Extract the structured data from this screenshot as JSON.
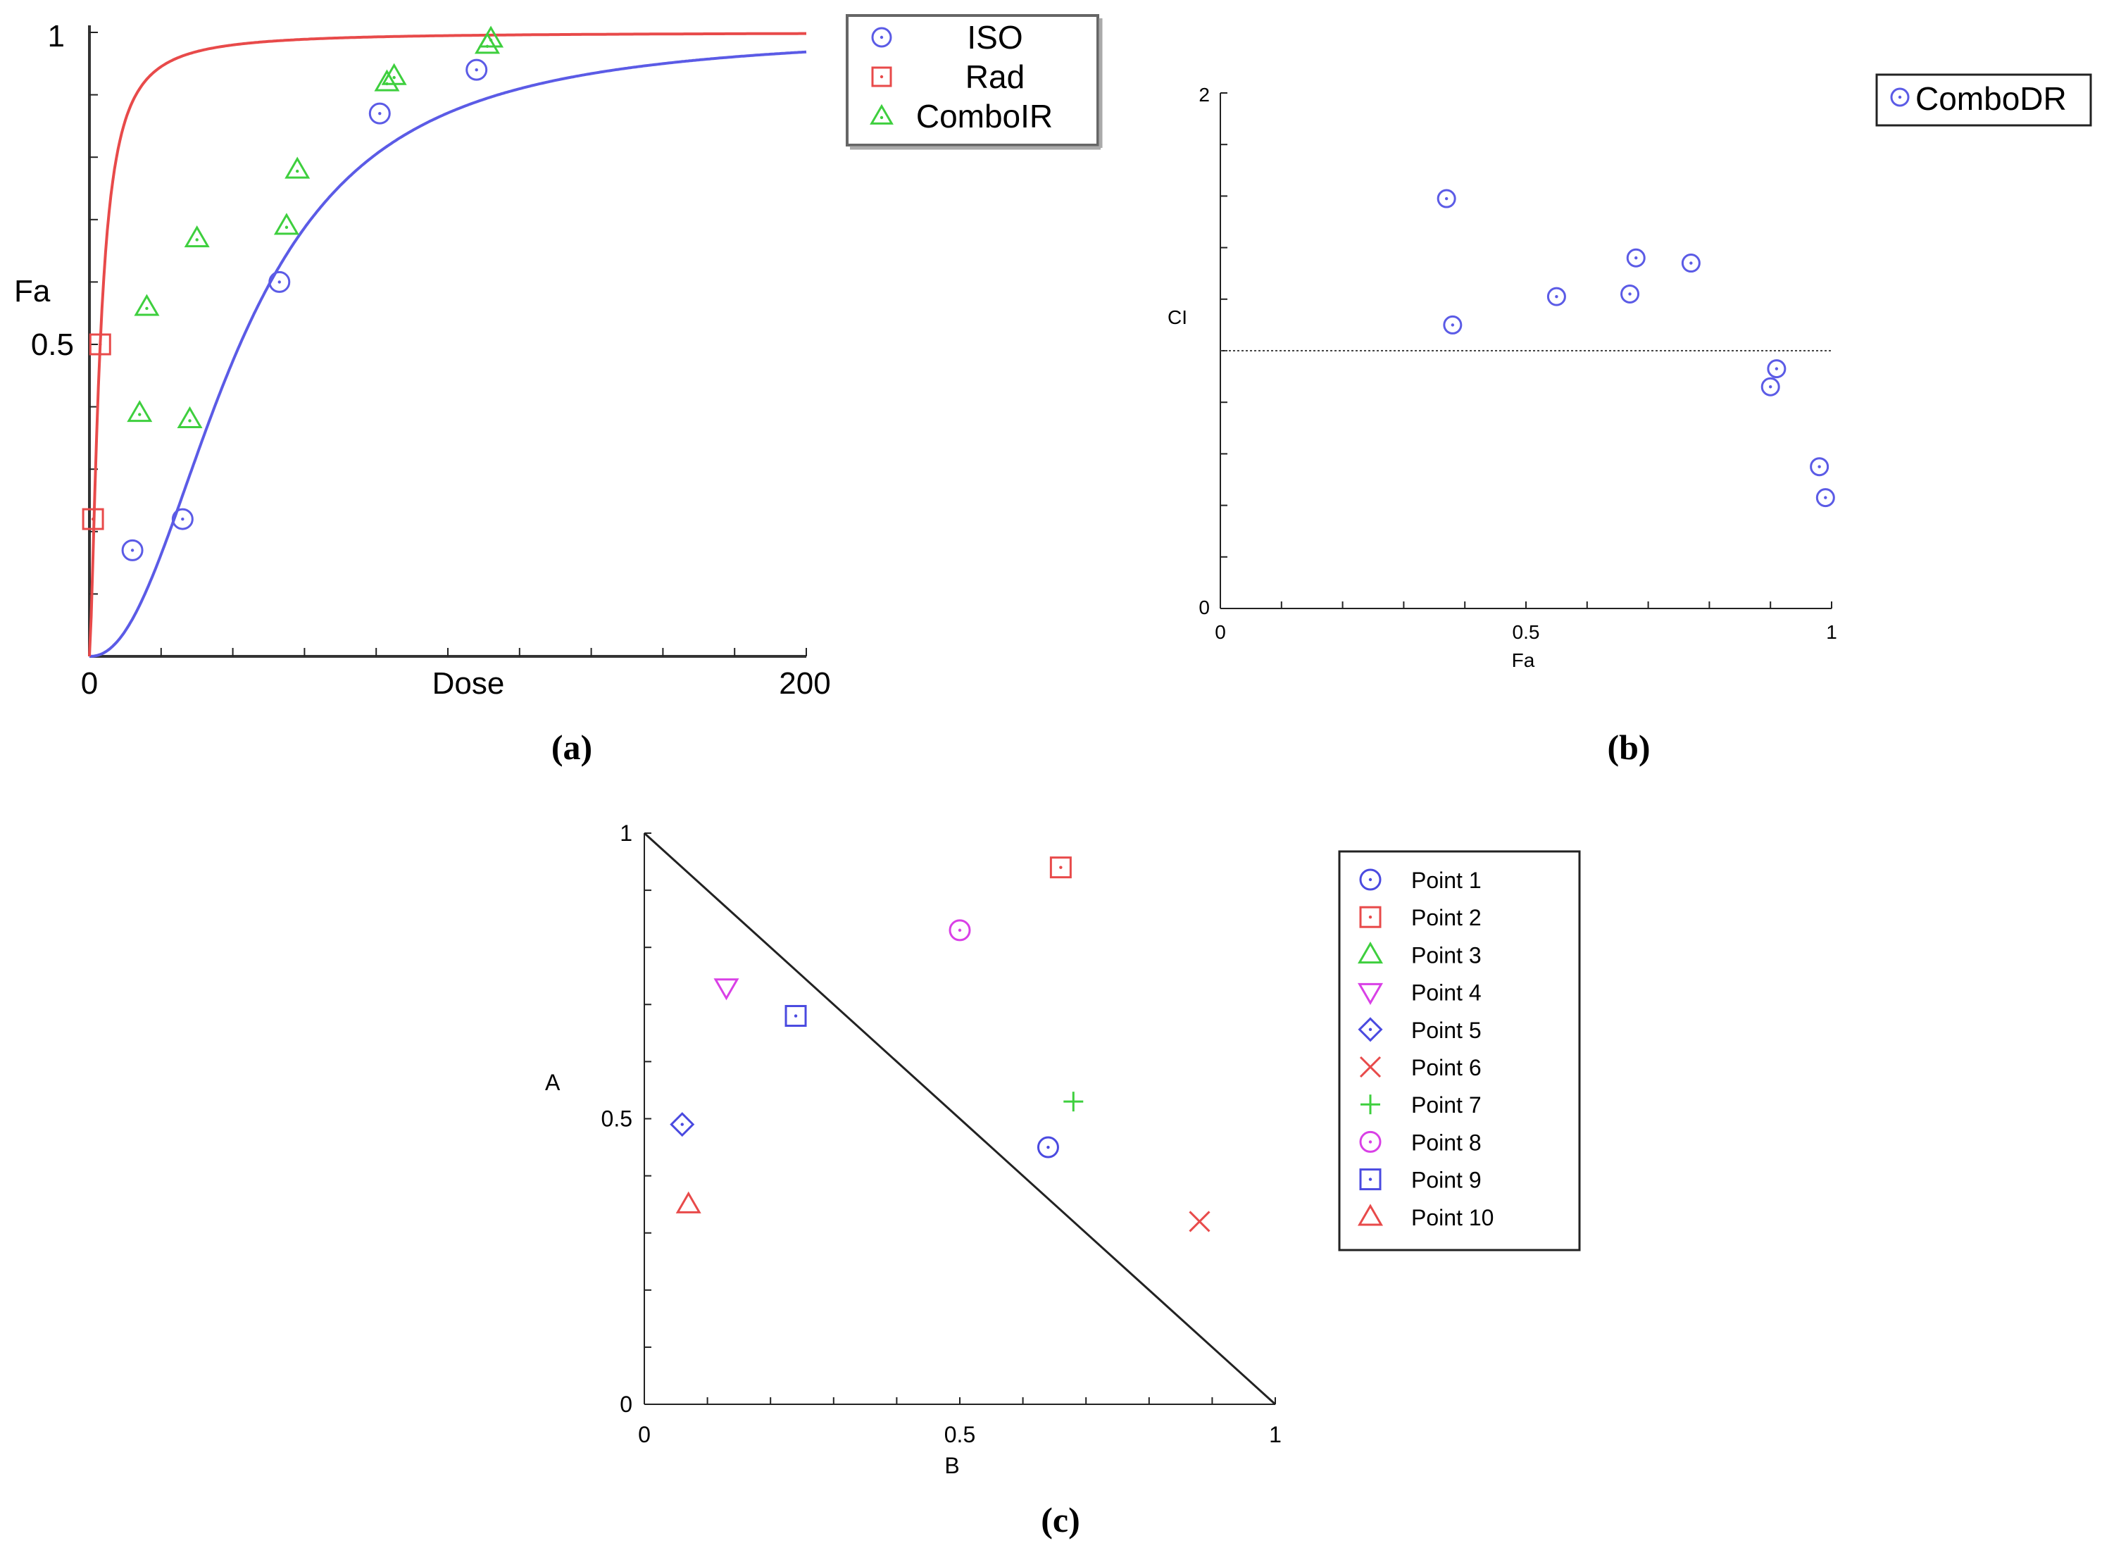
{
  "chart_data": [
    {
      "id": "a",
      "type": "scatter+line",
      "panel_label": "a",
      "xlabel": "Dose",
      "ylabel": "Fa",
      "xlim": [
        0,
        200
      ],
      "ylim": [
        0,
        1
      ],
      "x_ticks": [
        "0",
        "200"
      ],
      "y_ticks": [
        "0.5",
        "1"
      ],
      "legend": [
        "ISO",
        "Rad",
        "ComboIR"
      ],
      "colors": {
        "ISO": "#5b5be6",
        "Rad": "#e84a4a",
        "ComboIR": "#3ecf3e"
      },
      "series": [
        {
          "name": "ISO",
          "marker": "circle-dot",
          "points": [
            [
              12,
              0.17
            ],
            [
              26,
              0.22
            ],
            [
              53,
              0.6
            ],
            [
              81,
              0.87
            ],
            [
              108,
              0.94
            ]
          ]
        },
        {
          "name": "Rad",
          "marker": "square-dot",
          "points": [
            [
              1,
              0.22
            ],
            [
              3,
              0.5
            ]
          ]
        },
        {
          "name": "ComboIR",
          "marker": "triangle-dot",
          "points": [
            [
              14,
              0.39
            ],
            [
              16,
              0.56
            ],
            [
              28,
              0.38
            ],
            [
              30,
              0.67
            ],
            [
              55,
              0.69
            ],
            [
              58,
              0.78
            ],
            [
              83,
              0.92
            ],
            [
              85,
              0.93
            ],
            [
              111,
              0.98
            ],
            [
              112,
              0.99
            ]
          ]
        }
      ],
      "curves": [
        {
          "name": "ISO",
          "dm": 42,
          "m": 2.2
        },
        {
          "name": "Rad",
          "dm": 3,
          "m": 1.5
        }
      ]
    },
    {
      "id": "b",
      "type": "scatter",
      "panel_label": "b",
      "xlabel": "Fa",
      "ylabel": "CI",
      "xlim": [
        0,
        1
      ],
      "ylim": [
        0,
        2
      ],
      "x_ticks": [
        "0",
        "0.5",
        "1"
      ],
      "y_ticks": [
        "0",
        "2"
      ],
      "reference_line": 1,
      "legend": [
        "ComboDR"
      ],
      "colors": {
        "ComboDR": "#5b5be6"
      },
      "series": [
        {
          "name": "ComboDR",
          "marker": "circle-dot",
          "points": [
            [
              0.37,
              1.59
            ],
            [
              0.38,
              1.1
            ],
            [
              0.55,
              1.21
            ],
            [
              0.67,
              1.22
            ],
            [
              0.68,
              1.36
            ],
            [
              0.77,
              1.34
            ],
            [
              0.9,
              0.86
            ],
            [
              0.91,
              0.93
            ],
            [
              0.98,
              0.55
            ],
            [
              0.99,
              0.43
            ]
          ]
        }
      ]
    },
    {
      "id": "c",
      "type": "scatter",
      "panel_label": "c",
      "xlabel": "B",
      "ylabel": "A",
      "xlim": [
        0,
        1
      ],
      "ylim": [
        0,
        1
      ],
      "x_ticks": [
        "0",
        "0.5",
        "1"
      ],
      "y_ticks": [
        "0",
        "0.5",
        "1"
      ],
      "isobole": [
        [
          0,
          1
        ],
        [
          1,
          0
        ]
      ],
      "series": [
        {
          "name": "Point 1",
          "marker": "circle-dot",
          "color": "#4a4ae0",
          "points": [
            [
              0.64,
              0.45
            ]
          ]
        },
        {
          "name": "Point 2",
          "marker": "square-dot",
          "color": "#e84a4a",
          "points": [
            [
              0.66,
              0.94
            ]
          ]
        },
        {
          "name": "Point 3",
          "marker": "triangle",
          "color": "#3ecf3e",
          "points": []
        },
        {
          "name": "Point 4",
          "marker": "triangle-down",
          "color": "#d940e6",
          "points": [
            [
              0.13,
              0.73
            ]
          ]
        },
        {
          "name": "Point 5",
          "marker": "diamond-dot",
          "color": "#4a4ae0",
          "points": [
            [
              0.06,
              0.49
            ]
          ]
        },
        {
          "name": "Point 6",
          "marker": "cross-x",
          "color": "#e84a4a",
          "points": [
            [
              0.88,
              0.32
            ]
          ]
        },
        {
          "name": "Point 7",
          "marker": "plus",
          "color": "#3ecf3e",
          "points": [
            [
              0.68,
              0.53
            ]
          ]
        },
        {
          "name": "Point 8",
          "marker": "circle-dot",
          "color": "#d940e6",
          "points": [
            [
              0.5,
              0.83
            ]
          ]
        },
        {
          "name": "Point 9",
          "marker": "square-dot",
          "color": "#4a4ae0",
          "points": [
            [
              0.24,
              0.68
            ]
          ]
        },
        {
          "name": "Point 10",
          "marker": "triangle",
          "color": "#e84a4a",
          "points": [
            [
              0.07,
              0.35
            ]
          ]
        }
      ]
    }
  ]
}
